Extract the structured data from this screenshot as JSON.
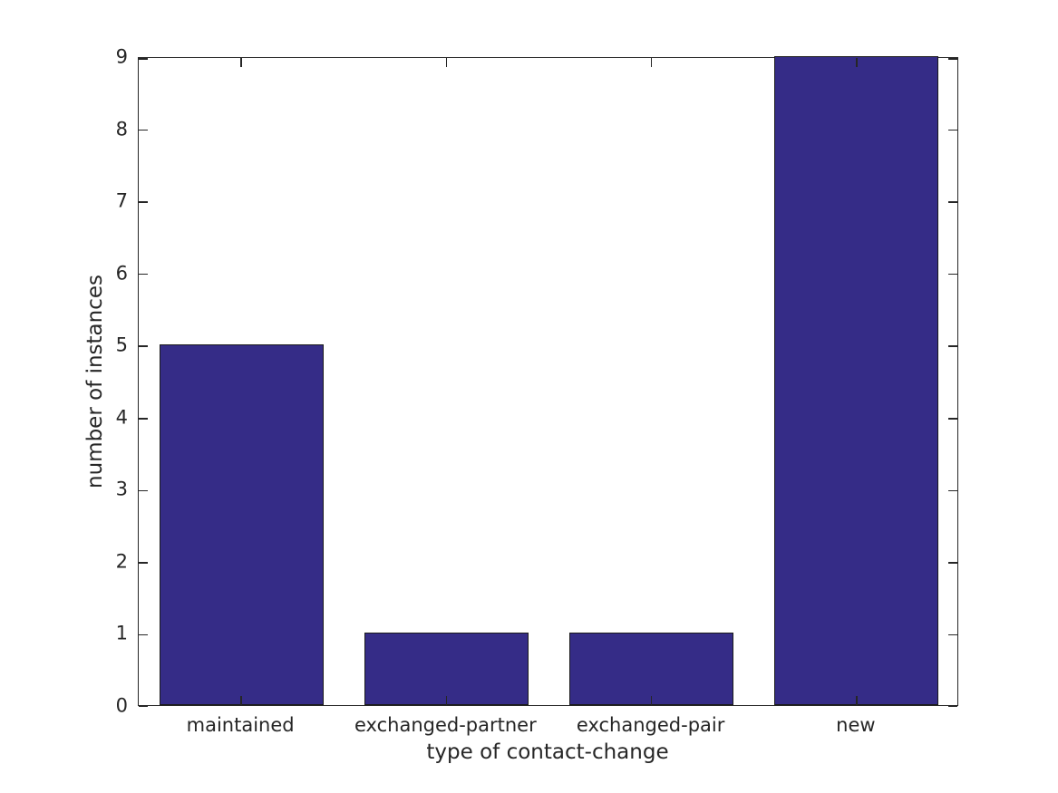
{
  "chart_data": {
    "type": "bar",
    "categories": [
      "maintained",
      "exchanged-partner",
      "exchanged-pair",
      "new"
    ],
    "values": [
      5,
      1,
      1,
      9
    ],
    "title": "",
    "xlabel": "type of contact-change",
    "ylabel": "number of instances",
    "ylim": [
      0,
      9
    ],
    "yticks": [
      0,
      1,
      2,
      3,
      4,
      5,
      6,
      7,
      8,
      9
    ],
    "bar_width_fraction": 0.8,
    "bar_color": "#352c87",
    "bar_edge_color": "#1a1a1a",
    "axis_color": "#262626",
    "background_color": "#ffffff",
    "grid": false,
    "tick_direction": "in",
    "framed": true,
    "legend": null
  }
}
